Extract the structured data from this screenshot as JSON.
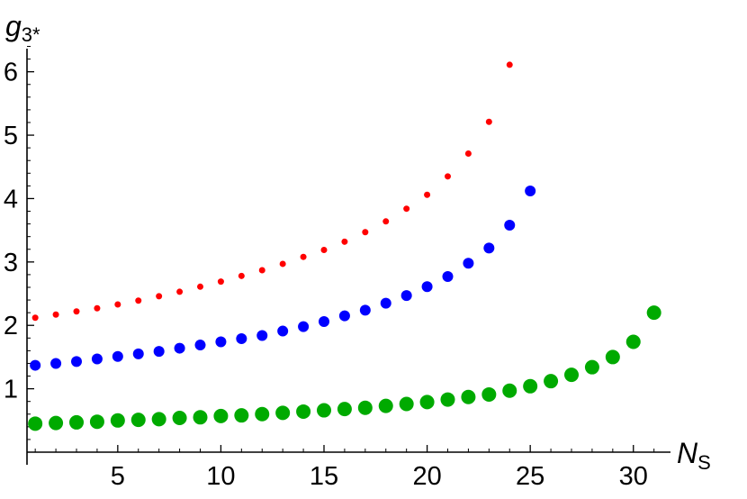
{
  "chart_data": {
    "type": "scatter",
    "title": "",
    "xlabel": {
      "main": "N",
      "sub": "S"
    },
    "ylabel": {
      "main": "g",
      "sub": "3*"
    },
    "xlim": [
      0.6,
      31.8
    ],
    "ylim": [
      0.0,
      6.45
    ],
    "xticks": [
      5,
      10,
      15,
      20,
      25,
      30
    ],
    "yticks": [
      1,
      2,
      3,
      4,
      5,
      6
    ],
    "grid": false,
    "series": [
      {
        "color": "#ff0000",
        "marker_size": "small",
        "x": [
          1,
          2,
          3,
          4,
          5,
          6,
          7,
          8,
          9,
          10,
          11,
          12,
          13,
          14,
          15,
          16,
          17,
          18,
          19,
          20,
          21,
          22,
          23,
          24
        ],
        "y": [
          2.12,
          2.17,
          2.22,
          2.27,
          2.33,
          2.39,
          2.46,
          2.53,
          2.61,
          2.69,
          2.78,
          2.87,
          2.97,
          3.08,
          3.19,
          3.32,
          3.47,
          3.64,
          3.84,
          4.06,
          4.35,
          4.71,
          5.21,
          6.11
        ]
      },
      {
        "color": "#0000ff",
        "marker_size": "medium",
        "x": [
          1,
          2,
          3,
          4,
          5,
          6,
          7,
          8,
          9,
          10,
          11,
          12,
          13,
          14,
          15,
          16,
          17,
          18,
          19,
          20,
          21,
          22,
          23,
          24,
          25
        ],
        "y": [
          1.37,
          1.4,
          1.43,
          1.47,
          1.51,
          1.55,
          1.59,
          1.64,
          1.69,
          1.74,
          1.79,
          1.84,
          1.91,
          1.98,
          2.06,
          2.15,
          2.24,
          2.35,
          2.47,
          2.61,
          2.77,
          2.98,
          3.22,
          3.58,
          4.12
        ]
      },
      {
        "color": "#00aa00",
        "marker_size": "large",
        "x": [
          1,
          2,
          3,
          4,
          5,
          6,
          7,
          8,
          9,
          10,
          11,
          12,
          13,
          14,
          15,
          16,
          17,
          18,
          19,
          20,
          21,
          22,
          23,
          24,
          25,
          26,
          27,
          28,
          29,
          30,
          31
        ],
        "y": [
          0.45,
          0.46,
          0.47,
          0.48,
          0.5,
          0.51,
          0.52,
          0.54,
          0.55,
          0.57,
          0.58,
          0.6,
          0.62,
          0.64,
          0.66,
          0.68,
          0.7,
          0.73,
          0.76,
          0.79,
          0.83,
          0.87,
          0.91,
          0.97,
          1.04,
          1.12,
          1.22,
          1.34,
          1.5,
          1.74,
          2.2
        ]
      }
    ]
  }
}
